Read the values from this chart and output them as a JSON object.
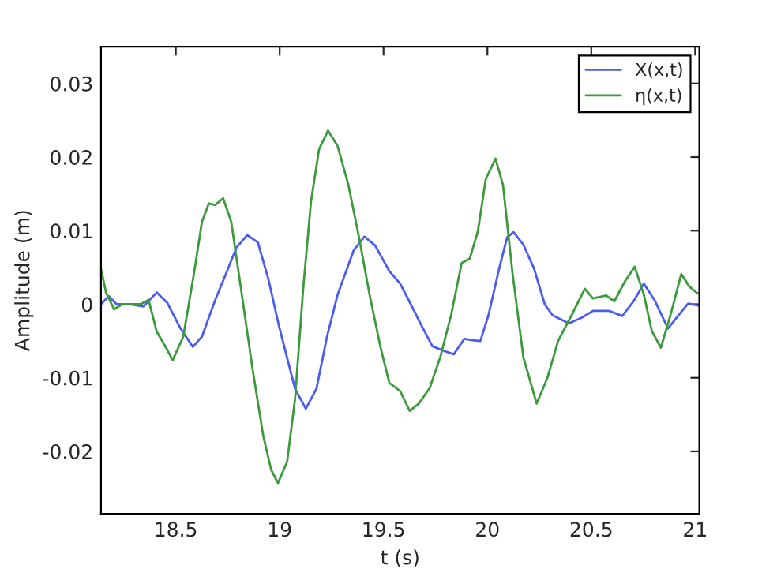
{
  "chart_data": {
    "type": "line",
    "xlabel": "t (s)",
    "ylabel": "Amplitude (m)",
    "xlim": [
      18.14,
      21.02
    ],
    "ylim": [
      -0.0285,
      0.035
    ],
    "xticks": [
      18.5,
      19,
      19.5,
      20,
      20.5,
      21
    ],
    "yticks": [
      -0.02,
      -0.01,
      0,
      0.01,
      0.02,
      0.03
    ],
    "grid": false,
    "legend": "top right",
    "marker": "none",
    "line_style": "solid",
    "series": [
      {
        "name": "X(x,t)",
        "color": "#4a5cf0",
        "x": [
          18.14,
          18.177,
          18.215,
          18.279,
          18.344,
          18.408,
          18.459,
          18.523,
          18.582,
          18.626,
          18.69,
          18.741,
          18.792,
          18.844,
          18.895,
          18.946,
          18.997,
          19.074,
          19.126,
          19.177,
          19.228,
          19.279,
          19.356,
          19.408,
          19.459,
          19.528,
          19.58,
          19.631,
          19.683,
          19.735,
          19.786,
          19.838,
          19.889,
          19.928,
          19.966,
          20.005,
          20.057,
          20.095,
          20.126,
          20.173,
          20.224,
          20.276,
          20.314,
          20.392,
          20.456,
          20.508,
          20.585,
          20.649,
          20.701,
          20.753,
          20.804,
          20.869,
          20.92,
          20.966,
          21.02
        ],
        "values": [
          0,
          0.0011,
          0,
          0,
          -0.0003,
          0.0016,
          0.0002,
          -0.0033,
          -0.0058,
          -0.0044,
          0.0006,
          0.0041,
          0.0077,
          0.0094,
          0.0084,
          0.0034,
          -0.003,
          -0.0115,
          -0.0142,
          -0.0115,
          -0.0044,
          0.0013,
          0.0073,
          0.0092,
          0.008,
          0.0045,
          0.0028,
          0,
          -0.0029,
          -0.0057,
          -0.0063,
          -0.0068,
          -0.0047,
          -0.0049,
          -0.005,
          -0.0015,
          0.0049,
          0.0091,
          0.0098,
          0.0081,
          0.0049,
          0,
          -0.0015,
          -0.0026,
          -0.0018,
          -0.0009,
          -0.0009,
          -0.0016,
          0.0003,
          0.0028,
          0.0006,
          -0.0033,
          -0.0015,
          0.0001,
          -0.0002
        ]
      },
      {
        "name": "η(x,t)",
        "color": "#3c9a3c",
        "x": [
          18.14,
          18.164,
          18.203,
          18.241,
          18.292,
          18.331,
          18.369,
          18.408,
          18.459,
          18.485,
          18.536,
          18.587,
          18.626,
          18.659,
          18.69,
          18.728,
          18.767,
          18.818,
          18.869,
          18.921,
          18.959,
          18.992,
          19.036,
          19.074,
          19.113,
          19.151,
          19.19,
          19.233,
          19.279,
          19.331,
          19.382,
          19.433,
          19.485,
          19.528,
          19.58,
          19.626,
          19.67,
          19.722,
          19.773,
          19.825,
          19.876,
          19.915,
          19.954,
          19.992,
          20.039,
          20.075,
          20.121,
          20.173,
          20.237,
          20.289,
          20.34,
          20.405,
          20.469,
          20.508,
          20.572,
          20.611,
          20.662,
          20.709,
          20.753,
          20.791,
          20.835,
          20.881,
          20.933,
          20.972,
          21.01,
          21.02
        ],
        "values": [
          0.0048,
          0.0016,
          -0.0007,
          0,
          0,
          0,
          0.0006,
          -0.0037,
          -0.0062,
          -0.0076,
          -0.0044,
          0.0041,
          0.0112,
          0.0137,
          0.0135,
          0.0144,
          0.0112,
          0.0013,
          -0.0087,
          -0.0179,
          -0.0225,
          -0.0243,
          -0.0214,
          -0.0129,
          0.002,
          0.014,
          0.0211,
          0.0236,
          0.0215,
          0.0162,
          0.0091,
          0.0013,
          -0.0058,
          -0.0107,
          -0.0118,
          -0.0145,
          -0.0135,
          -0.0114,
          -0.0072,
          -0.0015,
          0.0056,
          0.0062,
          0.0099,
          0.017,
          0.0198,
          0.0162,
          0.0042,
          -0.0072,
          -0.0135,
          -0.01,
          -0.005,
          -0.0015,
          0.0021,
          0.0008,
          0.0012,
          0.0004,
          0.0031,
          0.0051,
          0.0013,
          -0.0036,
          -0.0059,
          -0.0015,
          0.0041,
          0.0024,
          0.0015,
          0.0015
        ]
      }
    ]
  }
}
